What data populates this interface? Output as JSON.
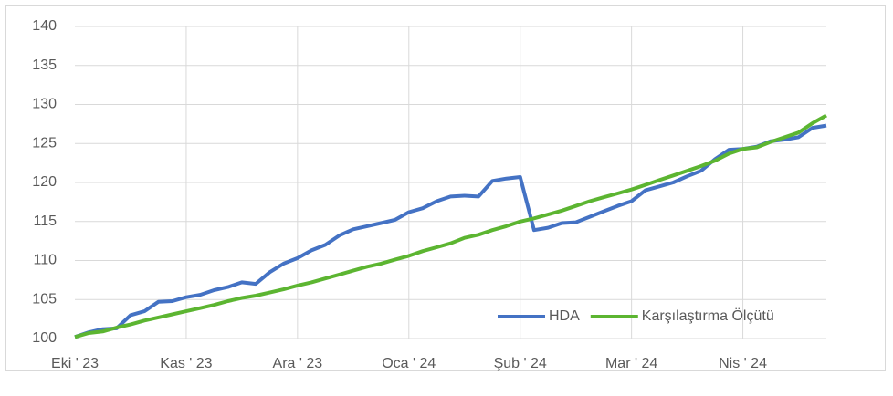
{
  "chart_data": {
    "type": "line",
    "categories": [
      "Eki ' 23",
      null,
      null,
      null,
      null,
      null,
      null,
      null,
      "Kas ' 23",
      null,
      null,
      null,
      null,
      null,
      null,
      null,
      "Ara ' 23",
      null,
      null,
      null,
      null,
      null,
      null,
      null,
      "Oca ' 24",
      null,
      null,
      null,
      null,
      null,
      null,
      null,
      "Şub ' 24",
      null,
      null,
      null,
      null,
      null,
      null,
      null,
      "Mar ' 24",
      null,
      null,
      null,
      null,
      null,
      null,
      null,
      "Nis ' 24",
      null,
      null,
      null,
      null,
      null,
      null
    ],
    "series": [
      {
        "name": "HDA",
        "color": "#4472c4",
        "values": [
          100.2,
          100.8,
          101.2,
          101.3,
          103.0,
          103.5,
          104.7,
          104.8,
          105.3,
          105.6,
          106.2,
          106.6,
          107.2,
          107.0,
          108.5,
          109.6,
          110.3,
          111.3,
          112.0,
          113.2,
          114.0,
          114.4,
          114.8,
          115.2,
          116.2,
          116.7,
          117.6,
          118.2,
          118.3,
          118.2,
          120.2,
          120.5,
          120.7,
          113.9,
          114.2,
          114.8,
          114.9,
          115.6,
          116.3,
          117.0,
          117.6,
          119.0,
          119.5,
          120.0,
          120.8,
          121.5,
          123.0,
          124.2,
          124.3,
          124.6,
          125.3,
          125.5,
          125.8,
          127.0,
          127.3
        ]
      },
      {
        "name": "Karşılaştırma Ölçütü",
        "color": "#5cb531",
        "values": [
          100.2,
          100.7,
          100.9,
          101.4,
          101.8,
          102.3,
          102.7,
          103.1,
          103.5,
          103.9,
          104.3,
          104.8,
          105.2,
          105.5,
          105.9,
          106.3,
          106.8,
          107.2,
          107.7,
          108.2,
          108.7,
          109.2,
          109.6,
          110.1,
          110.6,
          111.2,
          111.7,
          112.2,
          112.9,
          113.3,
          113.9,
          114.4,
          115.0,
          115.4,
          115.9,
          116.4,
          117.0,
          117.6,
          118.1,
          118.6,
          119.1,
          119.7,
          120.3,
          120.9,
          121.5,
          122.1,
          122.8,
          123.7,
          124.3,
          124.5,
          125.2,
          125.8,
          126.4,
          127.6,
          128.6
        ]
      }
    ],
    "ylim": [
      100,
      140
    ],
    "yticks": [
      100,
      105,
      110,
      115,
      120,
      125,
      130,
      135,
      140
    ],
    "grid": true,
    "legend": "lower right"
  }
}
